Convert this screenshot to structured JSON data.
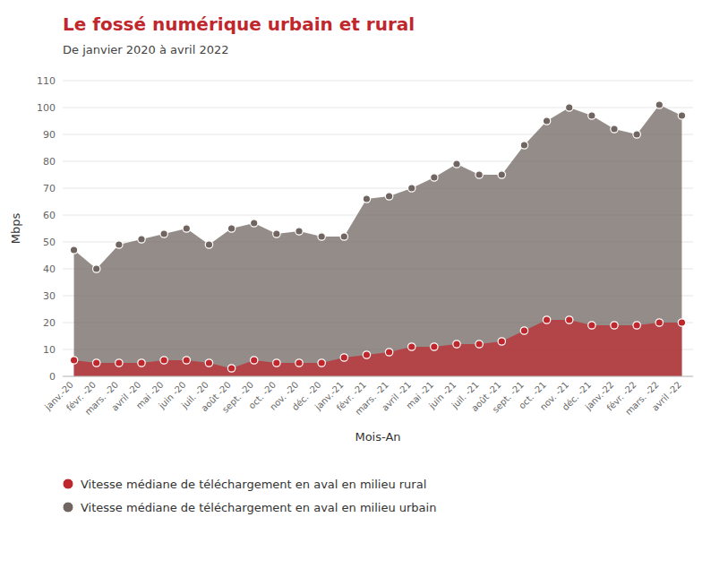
{
  "chart_data": {
    "type": "area",
    "title": "Le fossé numérique urbain et rural",
    "subtitle": "De janvier 2020 à avril 2022",
    "xlabel": "Mois-An",
    "ylabel": "Mbps",
    "categories": [
      "janv.-20",
      "févr. -20",
      "mars. -20",
      "avril -20",
      "mai -20",
      "juin -20",
      "juil. -20",
      "août -20",
      "sept. -20",
      "oct. -20",
      "nov. -20",
      "déc. -20",
      "janv.-21",
      "févr. -21",
      "mars. -21",
      "avril -21",
      "mai -21",
      "juin -21",
      "juil. -21",
      "août -21",
      "sept. -21",
      "oct. -21",
      "nov. -21",
      "déc. -21",
      "janv.-22",
      "févr. -22",
      "mars. -22",
      "avril -22"
    ],
    "series": [
      {
        "name": "Vitesse médiane de téléchargement en aval en milieu urbain",
        "color": "#706560",
        "values": [
          47,
          40,
          49,
          51,
          53,
          55,
          49,
          55,
          57,
          53,
          54,
          52,
          52,
          66,
          67,
          70,
          74,
          79,
          75,
          75,
          86,
          95,
          100,
          97,
          92,
          90,
          101,
          97
        ]
      },
      {
        "name": "Vitesse médiane de téléchargement en aval en milieu rural",
        "color": "#c0272d",
        "values": [
          6,
          5,
          5,
          5,
          6,
          6,
          5,
          3,
          6,
          5,
          5,
          5,
          7,
          8,
          9,
          11,
          11,
          12,
          12,
          13,
          17,
          21,
          21,
          19,
          19,
          19,
          20,
          20
        ]
      }
    ],
    "ylim": [
      0,
      110
    ],
    "yticks": [
      0,
      10,
      20,
      30,
      40,
      50,
      60,
      70,
      80,
      90,
      100,
      110
    ],
    "grid": true,
    "legend": "bottom",
    "marker": "circle"
  }
}
